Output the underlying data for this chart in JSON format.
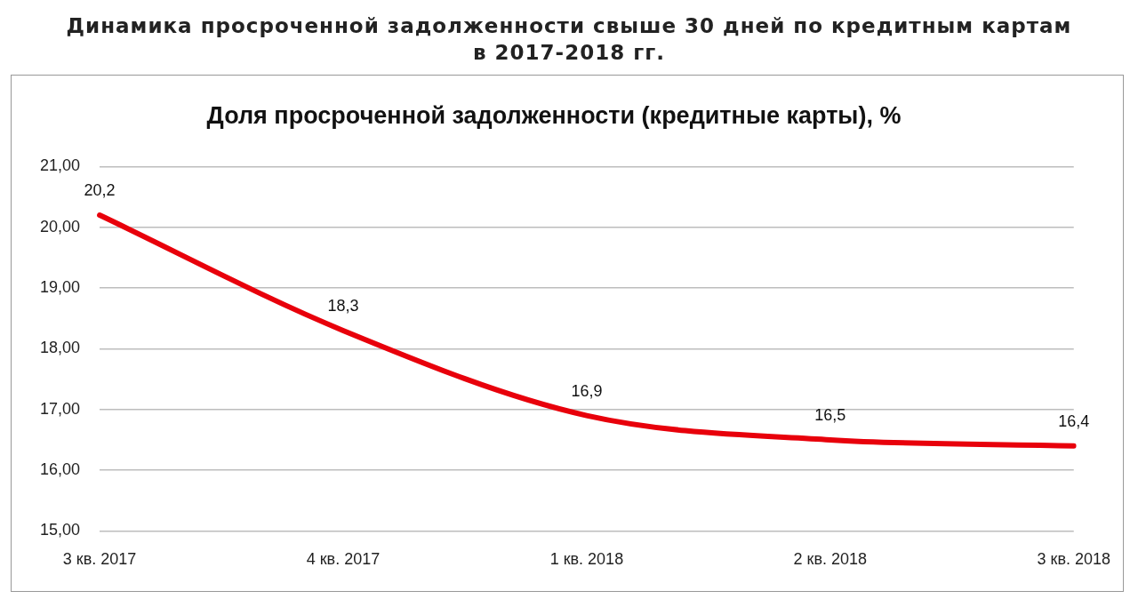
{
  "chart_data": {
    "type": "line",
    "title": "Доля просроченной задолженности (кредитные карты), %",
    "subtitle": "Динамика просроченной задолженности свыше 30 дней по кредитным картам в 2017-2018 гг.",
    "categories": [
      "3 кв. 2017",
      "4 кв. 2017",
      "1 кв. 2018",
      "2 кв. 2018",
      "3 кв. 2018"
    ],
    "series": [
      {
        "color": "#e8000b",
        "values": [
          20.2,
          18.3,
          16.9,
          16.5,
          16.4
        ],
        "value_labels": [
          "20,2",
          "18,3",
          "16,9",
          "16,5",
          "16,4"
        ]
      }
    ],
    "ylim": [
      15,
      21
    ],
    "yticks": [
      {
        "value": 15,
        "label": "15,00"
      },
      {
        "value": 16,
        "label": "16,00"
      },
      {
        "value": 17,
        "label": "17,00"
      },
      {
        "value": 18,
        "label": "18,00"
      },
      {
        "value": 19,
        "label": "19,00"
      },
      {
        "value": 20,
        "label": "20,00"
      },
      {
        "value": 21,
        "label": "21,00"
      }
    ],
    "grid": "y",
    "legend": false,
    "marker": "none",
    "line_style": "solid"
  }
}
